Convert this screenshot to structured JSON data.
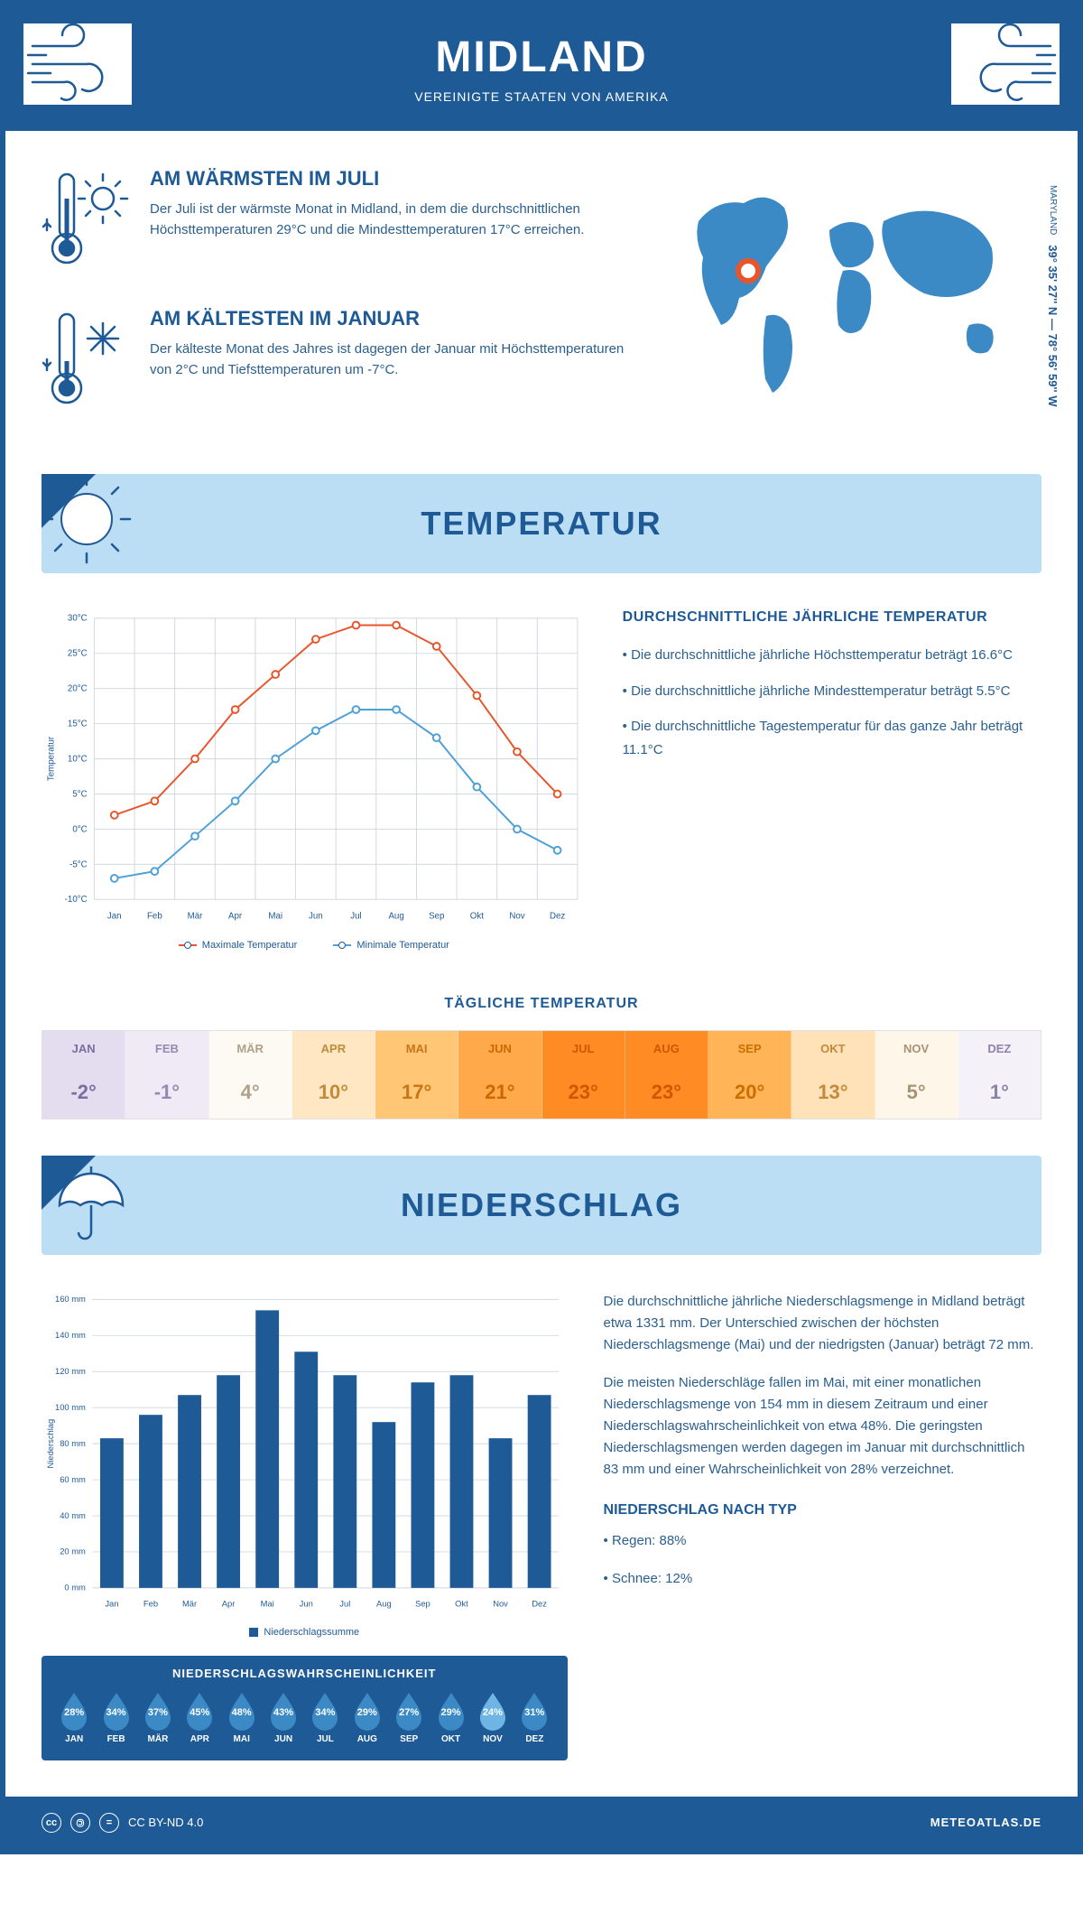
{
  "header": {
    "title": "MIDLAND",
    "subtitle": "VEREINIGTE STAATEN VON AMERIKA"
  },
  "coords": {
    "lat": "39° 35' 27'' N — 78° 56' 59'' W",
    "region": "MARYLAND"
  },
  "warmest": {
    "title": "AM WÄRMSTEN IM JULI",
    "text": "Der Juli ist der wärmste Monat in Midland, in dem die durchschnittlichen Höchsttemperaturen 29°C und die Mindesttemperaturen 17°C erreichen."
  },
  "coldest": {
    "title": "AM KÄLTESTEN IM JANUAR",
    "text": "Der kälteste Monat des Jahres ist dagegen der Januar mit Höchsttemperaturen von 2°C und Tiefsttemperaturen um -7°C."
  },
  "temperature": {
    "banner": "TEMPERATUR",
    "chart": {
      "type": "line",
      "months": [
        "Jan",
        "Feb",
        "Mär",
        "Apr",
        "Mai",
        "Jun",
        "Jul",
        "Aug",
        "Sep",
        "Okt",
        "Nov",
        "Dez"
      ],
      "max_label": "Maximale Temperatur",
      "min_label": "Minimale Temperatur",
      "max_color": "#e8552a",
      "min_color": "#4da0d8",
      "max_values": [
        2,
        4,
        10,
        17,
        22,
        27,
        29,
        29,
        26,
        19,
        11,
        5
      ],
      "min_values": [
        -7,
        -6,
        -1,
        4,
        10,
        14,
        17,
        17,
        13,
        6,
        0,
        -3
      ],
      "ylim": [
        -10,
        30
      ],
      "ytick_step": 5,
      "ylabel": "Temperatur",
      "y_tick_labels": [
        "-10°C",
        "-5°C",
        "0°C",
        "5°C",
        "10°C",
        "15°C",
        "20°C",
        "25°C",
        "30°C"
      ],
      "grid_color": "#d0d8e0",
      "axis_color": "#1e5a96",
      "label_fontsize": 10
    },
    "summary": {
      "title": "DURCHSCHNITTLICHE JÄHRLICHE TEMPERATUR",
      "b1": "• Die durchschnittliche jährliche Höchsttemperatur beträgt 16.6°C",
      "b2": "• Die durchschnittliche jährliche Mindesttemperatur beträgt 5.5°C",
      "b3": "• Die durchschnittliche Tagestemperatur für das ganze Jahr beträgt 11.1°C"
    },
    "daily": {
      "title": "TÄGLICHE TEMPERATUR",
      "months": [
        "JAN",
        "FEB",
        "MÄR",
        "APR",
        "MAI",
        "JUN",
        "JUL",
        "AUG",
        "SEP",
        "OKT",
        "NOV",
        "DEZ"
      ],
      "values": [
        "-2°",
        "-1°",
        "4°",
        "10°",
        "17°",
        "21°",
        "23°",
        "23°",
        "20°",
        "13°",
        "5°",
        "1°"
      ],
      "colors": [
        "#e4ddf0",
        "#efeaf6",
        "#fdf9f3",
        "#ffe7c4",
        "#ffc675",
        "#ffa94a",
        "#ff8b24",
        "#ff8b24",
        "#ffb557",
        "#ffe2b8",
        "#fff6ea",
        "#f5f1f8"
      ],
      "text_colors": [
        "#7a6fa0",
        "#948bb5",
        "#b0a088",
        "#c08c3a",
        "#c87617",
        "#cc6800",
        "#d05600",
        "#d05600",
        "#cc6e00",
        "#c4893b",
        "#a89276",
        "#8d82a8"
      ]
    }
  },
  "precip": {
    "banner": "NIEDERSCHLAG",
    "chart": {
      "type": "bar",
      "months": [
        "Jan",
        "Feb",
        "Mär",
        "Apr",
        "Mai",
        "Jun",
        "Jul",
        "Aug",
        "Sep",
        "Okt",
        "Nov",
        "Dez"
      ],
      "values": [
        83,
        96,
        107,
        118,
        154,
        131,
        118,
        92,
        114,
        118,
        83,
        107
      ],
      "bar_color": "#1e5a96",
      "ylim": [
        0,
        160
      ],
      "ytick_step": 20,
      "ylabel": "Niederschlag",
      "y_tick_labels": [
        "0 mm",
        "20 mm",
        "40 mm",
        "60 mm",
        "80 mm",
        "100 mm",
        "120 mm",
        "140 mm",
        "160 mm"
      ],
      "legend": "Niederschlagssumme",
      "grid_color": "#d0d8e0",
      "axis_color": "#1e5a96",
      "bar_width": 0.6
    },
    "probability": {
      "title": "NIEDERSCHLAGSWAHRSCHEINLICHKEIT",
      "months": [
        "JAN",
        "FEB",
        "MÄR",
        "APR",
        "MAI",
        "JUN",
        "JUL",
        "AUG",
        "SEP",
        "OKT",
        "NOV",
        "DEZ"
      ],
      "values": [
        "28%",
        "34%",
        "37%",
        "45%",
        "48%",
        "43%",
        "34%",
        "29%",
        "27%",
        "29%",
        "24%",
        "31%"
      ],
      "drop_color": "#3b89c5",
      "drop_min_color": "#6eb5e6",
      "min_index": 10
    },
    "text": {
      "p1": "Die durchschnittliche jährliche Niederschlagsmenge in Midland beträgt etwa 1331 mm. Der Unterschied zwischen der höchsten Niederschlagsmenge (Mai) und der niedrigsten (Januar) beträgt 72 mm.",
      "p2": "Die meisten Niederschläge fallen im Mai, mit einer monatlichen Niederschlagsmenge von 154 mm in diesem Zeitraum und einer Niederschlagswahrscheinlichkeit von etwa 48%. Die geringsten Niederschlagsmengen werden dagegen im Januar mit durchschnittlich 83 mm und einer Wahrscheinlichkeit von 28% verzeichnet.",
      "type_title": "NIEDERSCHLAG NACH TYP",
      "type1": "• Regen: 88%",
      "type2": "• Schnee: 12%"
    }
  },
  "footer": {
    "license": "CC BY-ND 4.0",
    "brand": "METEOATLAS.DE"
  }
}
